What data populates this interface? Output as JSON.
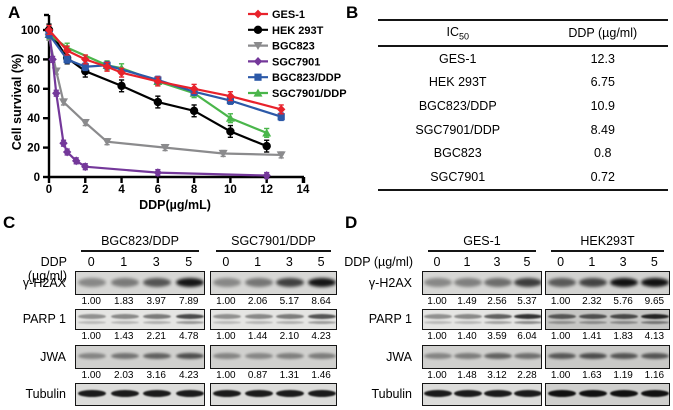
{
  "panel_a": {
    "label": "A",
    "chart_data": {
      "type": "line",
      "title": "",
      "xlabel": "DDP(µg/mL)",
      "ylabel": "Cell survival (%)",
      "xlim": [
        0,
        14
      ],
      "ylim": [
        0,
        110
      ],
      "xticks": [
        0,
        2,
        4,
        6,
        8,
        10,
        12,
        14
      ],
      "yticks": [
        0,
        20,
        40,
        60,
        80,
        100
      ],
      "grid": false,
      "legend_position": "right-top",
      "series": [
        {
          "name": "GES-1",
          "color": "#e8222b",
          "marker": "diamond",
          "err": 3,
          "x": [
            0,
            1,
            2,
            3.2,
            4,
            6,
            8,
            10,
            12.8
          ],
          "y": [
            100,
            86,
            80,
            75,
            71,
            65,
            60,
            55,
            46
          ]
        },
        {
          "name": "HEK 293T",
          "color": "#000000",
          "marker": "circle",
          "err": 4,
          "x": [
            0,
            1,
            2,
            4,
            6,
            8,
            10,
            12
          ],
          "y": [
            100,
            81,
            72,
            62,
            51,
            45,
            31,
            21
          ]
        },
        {
          "name": "BGC823",
          "color": "#8b8b8d",
          "marker": "tri-down",
          "err": 2,
          "x": [
            0,
            0.4,
            0.8,
            2,
            3.2,
            6.4,
            9.6,
            12.8
          ],
          "y": [
            95,
            72,
            51,
            37,
            24,
            20,
            16,
            15
          ]
        },
        {
          "name": "SGC7901",
          "color": "#74389a",
          "marker": "diamond",
          "err": 2,
          "x": [
            0,
            0.2,
            0.4,
            0.8,
            1,
            1.5,
            2,
            6,
            12
          ],
          "y": [
            100,
            80,
            57,
            23,
            17,
            11,
            7,
            3,
            1
          ]
        },
        {
          "name": "BGC823/DDP",
          "color": "#2c59a8",
          "marker": "square",
          "err": 2.5,
          "x": [
            0,
            1,
            2,
            3.2,
            6,
            8,
            10,
            12.8
          ],
          "y": [
            97,
            80,
            75,
            76,
            66,
            58,
            52,
            41
          ]
        },
        {
          "name": "SGC7901/DDP",
          "color": "#4ab64b",
          "marker": "tri-up",
          "err": 3,
          "x": [
            0,
            1,
            3.2,
            4,
            6,
            8,
            10,
            12
          ],
          "y": [
            97,
            88,
            76,
            74,
            65,
            57,
            40,
            30
          ]
        }
      ]
    }
  },
  "panel_b": {
    "label": "B",
    "table": {
      "header": {
        "col1_main": "IC",
        "col1_sub": "50",
        "col2": "DDP (µg/ml)"
      },
      "rows": [
        {
          "cell_line": "GES-1",
          "value": "12.3"
        },
        {
          "cell_line": "HEK 293T",
          "value": "6.75"
        },
        {
          "cell_line": "BGC823/DDP",
          "value": "10.9"
        },
        {
          "cell_line": "SGC7901/DDP",
          "value": "8.49"
        },
        {
          "cell_line": "BGC823",
          "value": "0.8"
        },
        {
          "cell_line": "SGC7901",
          "value": "0.72"
        }
      ]
    }
  },
  "panel_c": {
    "label": "C",
    "dose_label": "DDP (µg/ml)",
    "doses": [
      "0",
      "1",
      "3",
      "5"
    ],
    "groups": [
      "BGC823/DDP",
      "SGC7901/DDP"
    ],
    "blots": [
      {
        "protein": "γ-H2AX",
        "quant": [
          [
            "1.00",
            "1.83",
            "3.97",
            "7.89"
          ],
          [
            "1.00",
            "2.06",
            "5.17",
            "8.64"
          ]
        ]
      },
      {
        "protein": "PARP 1",
        "quant": [
          [
            "1.00",
            "1.43",
            "2.21",
            "4.78"
          ],
          [
            "1.00",
            "1.44",
            "2.10",
            "4.23"
          ]
        ]
      },
      {
        "protein": "JWA",
        "quant": [
          [
            "1.00",
            "2.03",
            "3.16",
            "4.23"
          ],
          [
            "1.00",
            "0.87",
            "1.31",
            "1.46"
          ]
        ]
      },
      {
        "protein": "Tubulin",
        "quant": null
      }
    ]
  },
  "panel_d": {
    "label": "D",
    "dose_label": "DDP (µg/ml)",
    "doses": [
      "0",
      "1",
      "3",
      "5"
    ],
    "groups": [
      "GES-1",
      "HEK293T"
    ],
    "blots": [
      {
        "protein": "γ-H2AX",
        "quant": [
          [
            "1.00",
            "1.49",
            "2.56",
            "5.37"
          ],
          [
            "1.00",
            "2.32",
            "5.76",
            "9.65"
          ]
        ]
      },
      {
        "protein": "PARP 1",
        "quant": [
          [
            "1.00",
            "1.40",
            "3.59",
            "6.04"
          ],
          [
            "1.00",
            "1.41",
            "1.83",
            "4.13"
          ]
        ]
      },
      {
        "protein": "JWA",
        "quant": [
          [
            "1.00",
            "1.48",
            "3.12",
            "2.28"
          ],
          [
            "1.00",
            "1.63",
            "1.19",
            "1.16"
          ]
        ]
      },
      {
        "protein": "Tubulin",
        "quant": null
      }
    ]
  }
}
